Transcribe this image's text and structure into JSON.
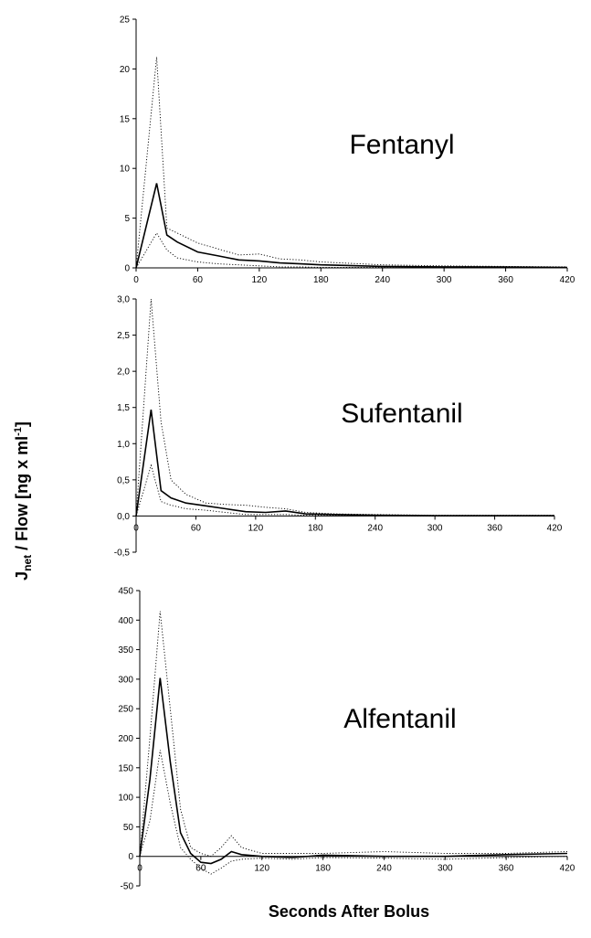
{
  "chart_data": {
    "type": "line",
    "ylabel": {
      "base": "J",
      "subscript": "net",
      "rest": " / Flow [ng x ml",
      "superscript": "-1",
      "tail": "]"
    },
    "xlabel": "Seconds After Bolus",
    "panels": [
      {
        "title": "Fentanyl",
        "xlim": [
          0,
          420
        ],
        "x_ticks": [
          0,
          60,
          120,
          180,
          240,
          300,
          360,
          420
        ],
        "x_tick_labels": [
          "0",
          "60",
          "120",
          "180",
          "240",
          "300",
          "360",
          "420"
        ],
        "ylim": [
          0,
          25
        ],
        "y_ticks": [
          0,
          5,
          10,
          15,
          20,
          25
        ],
        "y_tick_labels": [
          "0",
          "5",
          "10",
          "15",
          "20",
          "25"
        ],
        "series": [
          {
            "role": "upper",
            "style": "dotted",
            "x": [
              0,
              20,
              30,
              40,
              60,
              80,
              100,
              120,
              140,
              160,
              180,
              240,
              300,
              360,
              420
            ],
            "y": [
              0,
              21.2,
              4.0,
              3.5,
              2.5,
              1.9,
              1.3,
              1.4,
              0.9,
              0.8,
              0.6,
              0.3,
              0.2,
              0.15,
              0.1
            ]
          },
          {
            "role": "mean",
            "style": "solid",
            "x": [
              0,
              20,
              30,
              40,
              60,
              80,
              100,
              120,
              140,
              160,
              180,
              240,
              300,
              360,
              420
            ],
            "y": [
              0,
              8.5,
              3.3,
              2.6,
              1.6,
              1.2,
              0.8,
              0.7,
              0.5,
              0.4,
              0.3,
              0.15,
              0.1,
              0.08,
              0.05
            ]
          },
          {
            "role": "lower",
            "style": "dotted",
            "x": [
              0,
              20,
              30,
              40,
              60,
              80,
              100,
              120,
              140,
              160,
              180,
              240,
              300,
              360,
              420
            ],
            "y": [
              0,
              3.5,
              1.8,
              1.0,
              0.6,
              0.4,
              0.3,
              0.2,
              0.1,
              0.1,
              0.05,
              0.05,
              0.03,
              0.02,
              0.02
            ]
          }
        ]
      },
      {
        "title": "Sufentanil",
        "xlim": [
          0,
          420
        ],
        "x_ticks": [
          0,
          60,
          120,
          180,
          240,
          300,
          360,
          420
        ],
        "x_tick_labels": [
          "0",
          "60",
          "120",
          "180",
          "240",
          "300",
          "360",
          "420"
        ],
        "ylim": [
          -0.5,
          3.0
        ],
        "y_ticks": [
          -0.5,
          0,
          0.5,
          1.0,
          1.5,
          2.0,
          2.5,
          3.0
        ],
        "y_tick_labels": [
          "-0,5",
          "0,0",
          "0,5",
          "1,0",
          "1,5",
          "2,0",
          "2,5",
          "3,0"
        ],
        "series": [
          {
            "role": "upper",
            "style": "dotted",
            "x": [
              0,
              15,
              25,
              35,
              50,
              70,
              90,
              110,
              130,
              150,
              170,
              200,
              240,
              300,
              360,
              420
            ],
            "y": [
              0,
              3.0,
              1.3,
              0.5,
              0.3,
              0.18,
              0.16,
              0.15,
              0.12,
              0.1,
              0.05,
              0.03,
              0.02,
              0.01,
              0.01,
              0.01
            ]
          },
          {
            "role": "mean",
            "style": "solid",
            "x": [
              0,
              15,
              25,
              35,
              50,
              70,
              90,
              110,
              130,
              150,
              170,
              200,
              240,
              300,
              360,
              420
            ],
            "y": [
              0,
              1.47,
              0.35,
              0.25,
              0.18,
              0.14,
              0.1,
              0.06,
              0.05,
              0.07,
              0.03,
              0.02,
              0.01,
              0.005,
              0.005,
              0.005
            ]
          },
          {
            "role": "lower",
            "style": "dotted",
            "x": [
              0,
              15,
              25,
              35,
              50,
              70,
              90,
              110,
              130,
              150,
              170,
              200,
              240,
              300,
              360,
              420
            ],
            "y": [
              0,
              0.7,
              0.2,
              0.15,
              0.1,
              0.08,
              0.05,
              0.02,
              0.02,
              0.02,
              0.01,
              0.01,
              0.005,
              0.0,
              0.0,
              0.0
            ]
          }
        ]
      },
      {
        "title": "Alfentanil",
        "xlim": [
          0,
          420
        ],
        "x_ticks": [
          0,
          60,
          120,
          180,
          240,
          300,
          360,
          420
        ],
        "x_tick_labels": [
          "0",
          "60",
          "120",
          "180",
          "240",
          "300",
          "360",
          "420"
        ],
        "ylim": [
          -50,
          450
        ],
        "y_ticks": [
          -50,
          0,
          50,
          100,
          150,
          200,
          250,
          300,
          350,
          400,
          450
        ],
        "y_tick_labels": [
          "-50",
          "0",
          "50",
          "100",
          "150",
          "200",
          "250",
          "300",
          "350",
          "400",
          "450"
        ],
        "series": [
          {
            "role": "upper",
            "style": "dotted",
            "x": [
              0,
              10,
              20,
              30,
              40,
              50,
              60,
              70,
              80,
              90,
              100,
              120,
              150,
              180,
              240,
              300,
              360,
              420
            ],
            "y": [
              0,
              200,
              415,
              250,
              80,
              15,
              5,
              0,
              15,
              35,
              15,
              5,
              5,
              5,
              8,
              5,
              5,
              8
            ]
          },
          {
            "role": "mean",
            "style": "solid",
            "x": [
              0,
              10,
              20,
              30,
              40,
              50,
              60,
              70,
              80,
              90,
              100,
              120,
              150,
              180,
              240,
              300,
              360,
              420
            ],
            "y": [
              0,
              130,
              302,
              160,
              40,
              5,
              -10,
              -12,
              -5,
              8,
              3,
              0,
              -2,
              2,
              0,
              0,
              3,
              5
            ]
          },
          {
            "role": "lower",
            "style": "dotted",
            "x": [
              0,
              10,
              20,
              30,
              40,
              50,
              60,
              70,
              80,
              90,
              100,
              120,
              150,
              180,
              240,
              300,
              360,
              420
            ],
            "y": [
              0,
              60,
              180,
              90,
              15,
              -5,
              -20,
              -30,
              -20,
              -8,
              -5,
              -3,
              -5,
              -2,
              -3,
              -5,
              -2,
              0
            ]
          }
        ]
      }
    ]
  }
}
